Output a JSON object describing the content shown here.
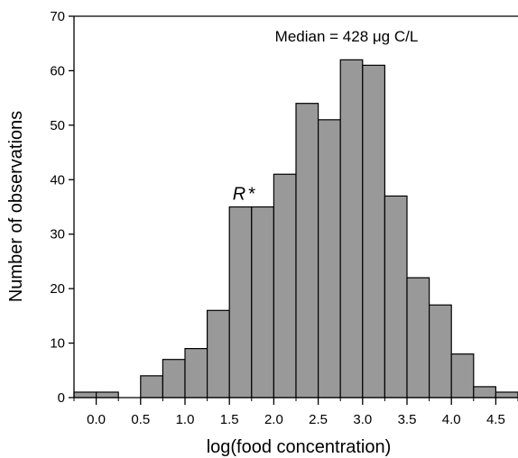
{
  "chart_data": {
    "type": "bar",
    "title": "",
    "xlabel": "log(food concentration)",
    "ylabel": "Number of observations",
    "annotation": "Median = 428 μg C/L",
    "marker": {
      "label": "R",
      "symbol": "*",
      "x": 1.75
    },
    "bin_width": 0.25,
    "bin_starts": [
      -0.25,
      0.0,
      0.25,
      0.5,
      0.75,
      1.0,
      1.25,
      1.5,
      1.75,
      2.0,
      2.25,
      2.5,
      2.75,
      3.0,
      3.25,
      3.5,
      3.75,
      4.0,
      4.25,
      4.5
    ],
    "values": [
      1,
      1,
      0,
      4,
      7,
      9,
      16,
      35,
      35,
      41,
      54,
      51,
      62,
      61,
      37,
      22,
      17,
      8,
      2,
      1
    ],
    "xlim": [
      -0.25,
      4.75
    ],
    "ylim": [
      0,
      70
    ],
    "x_ticks": [
      0.0,
      0.5,
      1.0,
      1.5,
      2.0,
      2.5,
      3.0,
      3.5,
      4.0,
      4.5
    ],
    "x_tick_labels": [
      "0.0",
      "0.5",
      "1.0",
      "1.5",
      "2.0",
      "2.5",
      "3.0",
      "3.5",
      "4.0",
      "4.5"
    ],
    "y_ticks": [
      0,
      10,
      20,
      30,
      40,
      50,
      60,
      70
    ],
    "y_tick_labels": [
      "0",
      "10",
      "20",
      "30",
      "40",
      "50",
      "60",
      "70"
    ],
    "bar_color": "#999999",
    "edge_color": "#000000",
    "grid": false
  }
}
